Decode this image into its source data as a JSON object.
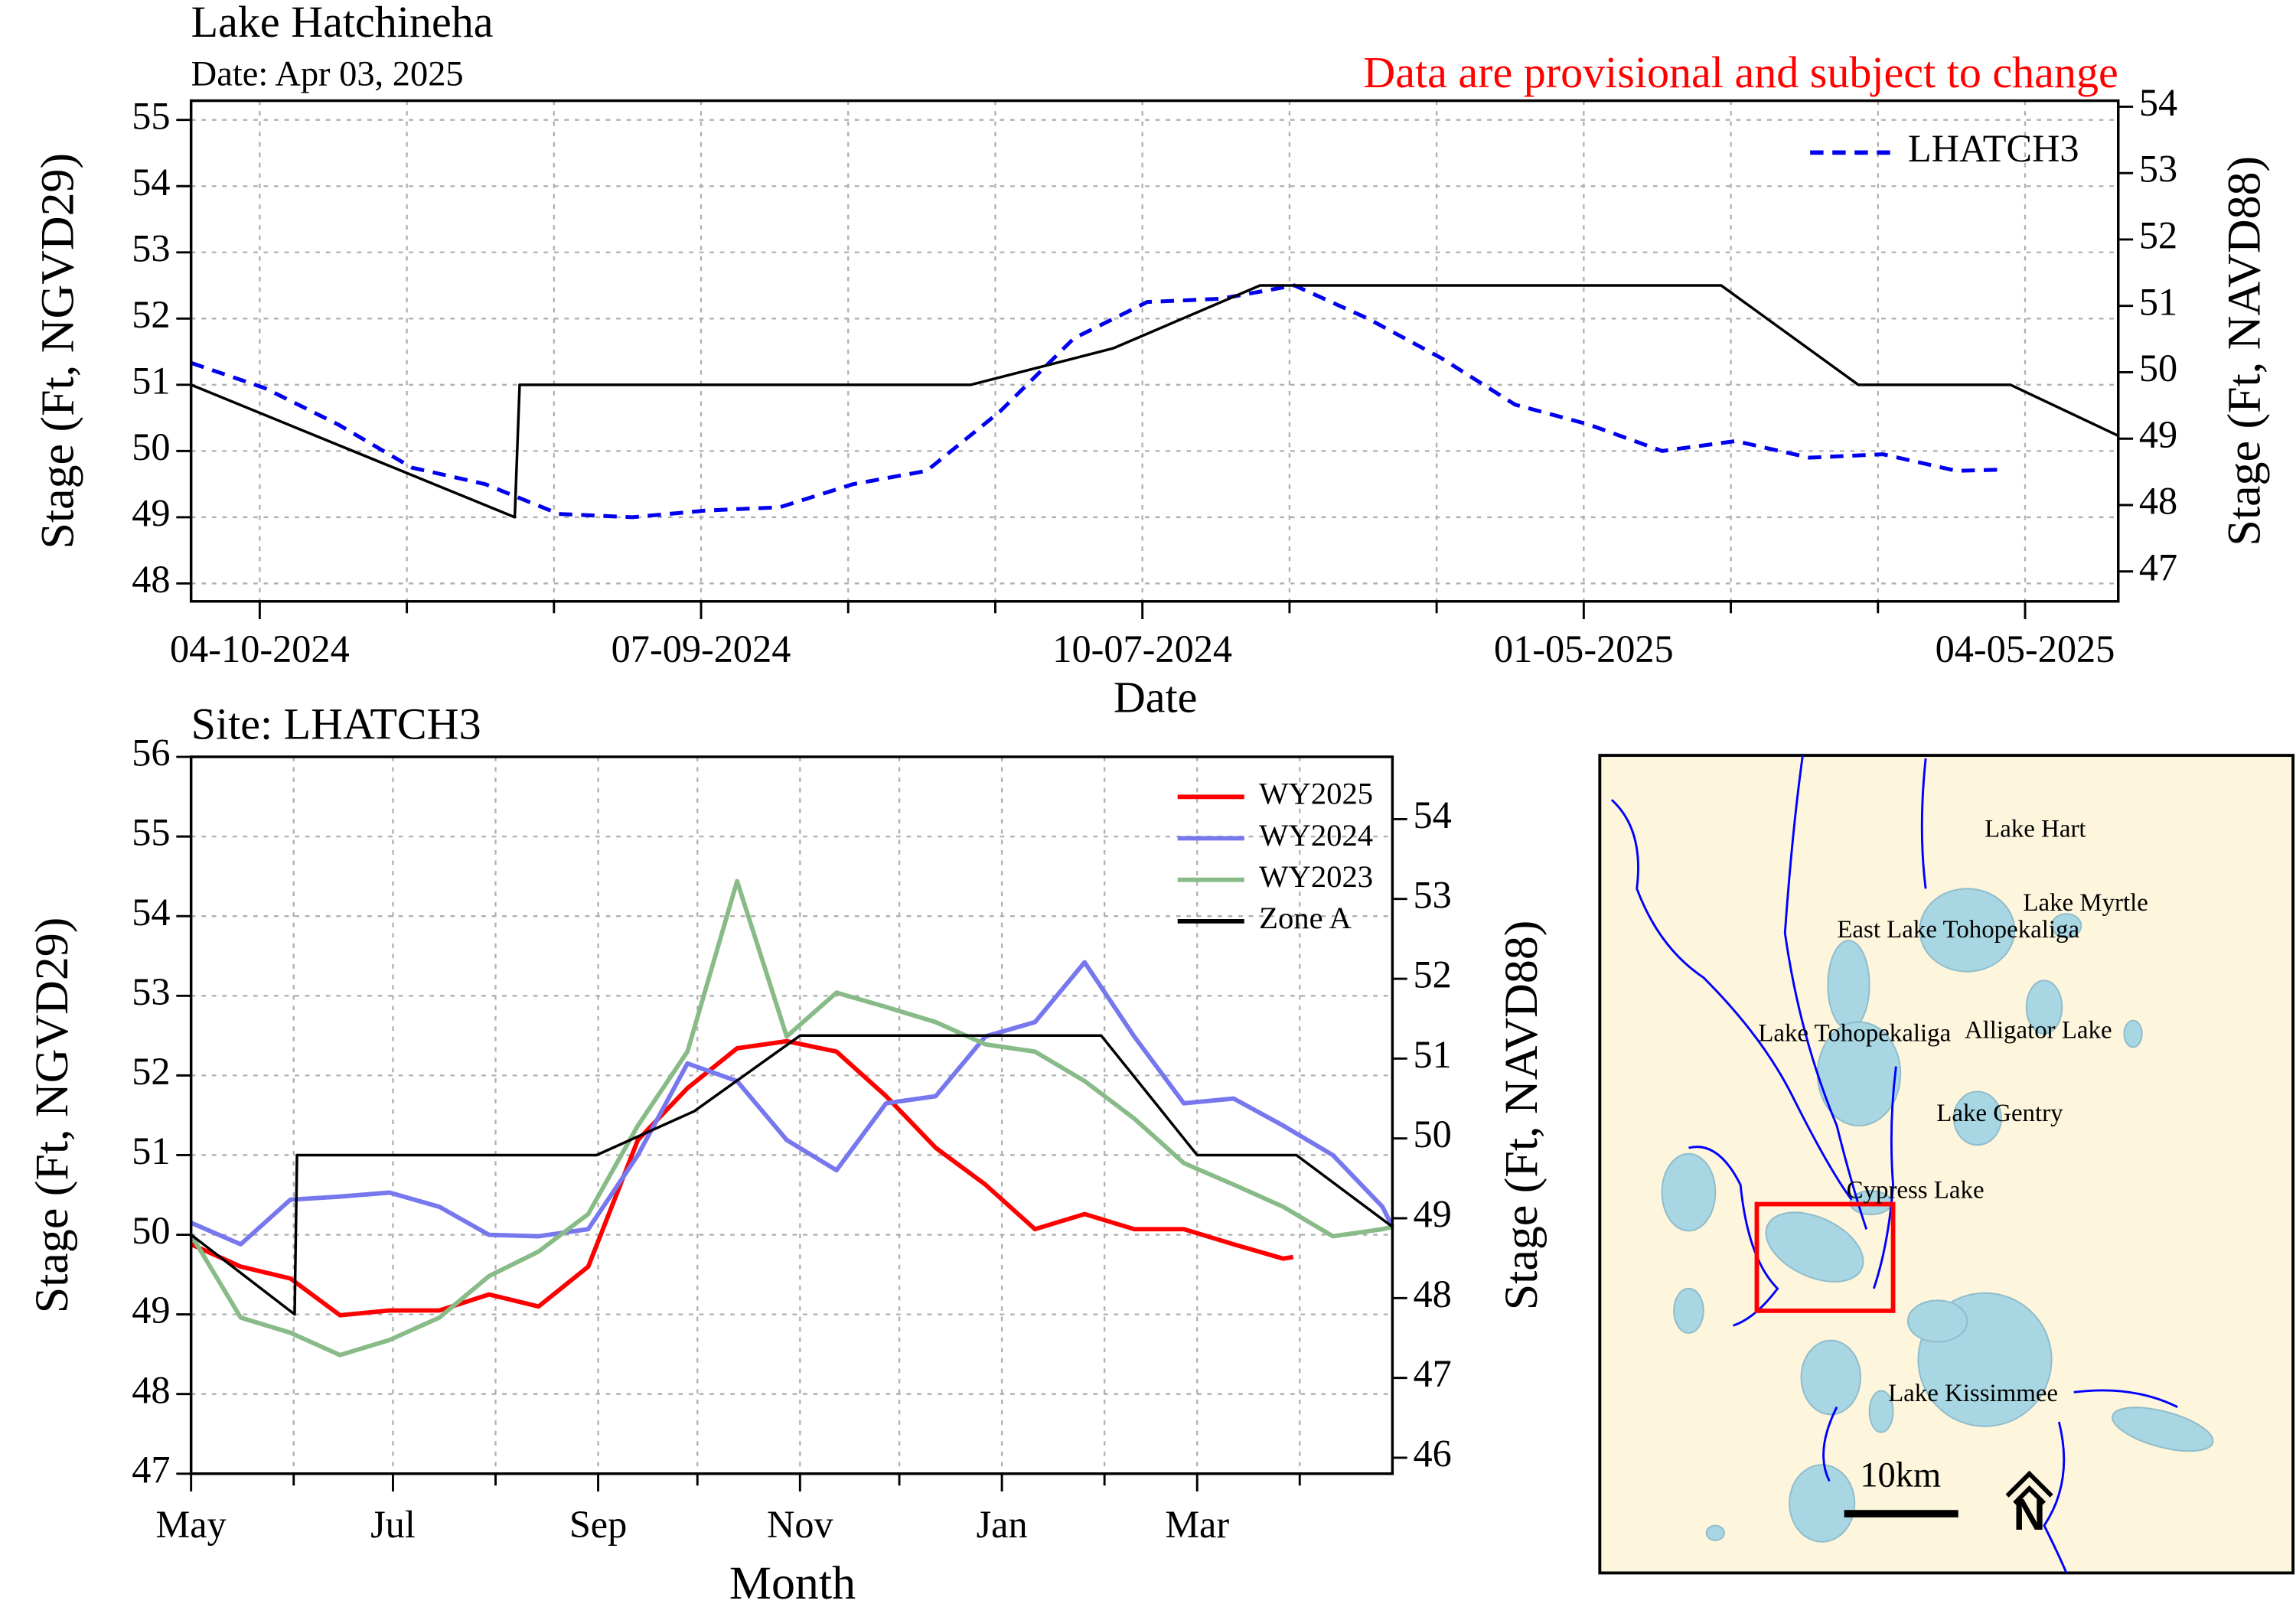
{
  "chart_data": [
    {
      "type": "line",
      "title": "Lake Hatchineha",
      "subtitle": "Date: Apr 03, 2025",
      "annotation": "Data are provisional and subject to change",
      "x_label": "Date",
      "y_label": "Stage (Ft, NGVD29)",
      "y2_label": "Stage (Ft, NAVD88)",
      "xlim": [
        "2024-03-27",
        "2025-04-24"
      ],
      "xticks": [
        {
          "value": "2024-04-10",
          "label": "04-10-2024"
        },
        {
          "value": "2024-05-10",
          "label": null
        },
        {
          "value": "2024-06-09",
          "label": null
        },
        {
          "value": "2024-07-09",
          "label": "07-09-2024"
        },
        {
          "value": "2024-08-08",
          "label": null
        },
        {
          "value": "2024-09-07",
          "label": null
        },
        {
          "value": "2024-10-07",
          "label": "10-07-2024"
        },
        {
          "value": "2024-11-06",
          "label": null
        },
        {
          "value": "2024-12-06",
          "label": null
        },
        {
          "value": "2025-01-05",
          "label": "01-05-2025"
        },
        {
          "value": "2025-02-04",
          "label": null
        },
        {
          "value": "2025-03-06",
          "label": null
        },
        {
          "value": "2025-04-05",
          "label": "04-05-2025"
        }
      ],
      "ylim": [
        47.73,
        55.29
      ],
      "yticks": [
        48,
        49,
        50,
        51,
        52,
        53,
        54,
        55
      ],
      "y2lim": [
        46.55,
        54.09
      ],
      "y2ticks": [
        47,
        48,
        49,
        50,
        51,
        52,
        53,
        54
      ],
      "grid": true,
      "legend": "upper right",
      "series": [
        {
          "name": "LHATCH3",
          "color": "#0000ee",
          "line_style": "dashed",
          "x": [
            "2024-03-27",
            "2024-04-11",
            "2024-04-26",
            "2024-05-11",
            "2024-05-26",
            "2024-06-10",
            "2024-06-25",
            "2024-07-10",
            "2024-07-25",
            "2024-08-09",
            "2024-08-24",
            "2024-09-08",
            "2024-09-23",
            "2024-10-08",
            "2024-10-23",
            "2024-11-07",
            "2024-11-22",
            "2024-12-07",
            "2024-12-22",
            "2025-01-06",
            "2025-01-21",
            "2025-02-05",
            "2025-02-20",
            "2025-03-07",
            "2025-03-22",
            "2025-04-01"
          ],
          "values": [
            51.33,
            50.95,
            50.4,
            49.75,
            49.5,
            49.05,
            49.0,
            49.1,
            49.15,
            49.5,
            49.7,
            50.6,
            51.7,
            52.25,
            52.3,
            52.5,
            52.0,
            51.4,
            50.7,
            50.4,
            50.0,
            50.15,
            49.9,
            49.95,
            49.7,
            49.72
          ]
        },
        {
          "color": "#000000",
          "line_style": "solid",
          "x": [
            "2024-03-27",
            "2024-06-01",
            "2024-06-02",
            "2024-09-02",
            "2024-10-01",
            "2024-10-31",
            "2025-02-02",
            "2025-03-02",
            "2025-04-02",
            "2025-04-24"
          ],
          "values": [
            51.0,
            49.0,
            51.0,
            51.0,
            51.55,
            52.5,
            52.5,
            51.0,
            51.0,
            50.23
          ]
        }
      ]
    },
    {
      "type": "line",
      "title": "Site: LHATCH3",
      "x_label": "Month",
      "y_label": "Stage (Ft, NGVD29)",
      "y2_label": "Stage (Ft, NAVD88)",
      "xlim": [
        0,
        363
      ],
      "xticks": [
        {
          "value": 0,
          "label": "May"
        },
        {
          "value": 31,
          "label": null
        },
        {
          "value": 61,
          "label": "Jul"
        },
        {
          "value": 92,
          "label": null
        },
        {
          "value": 123,
          "label": "Sep"
        },
        {
          "value": 153,
          "label": null
        },
        {
          "value": 184,
          "label": "Nov"
        },
        {
          "value": 214,
          "label": null
        },
        {
          "value": 245,
          "label": "Jan"
        },
        {
          "value": 276,
          "label": null
        },
        {
          "value": 304,
          "label": "Mar"
        },
        {
          "value": 335,
          "label": null
        }
      ],
      "ylim": [
        47,
        56
      ],
      "yticks": [
        47,
        48,
        49,
        50,
        51,
        52,
        53,
        54,
        55,
        56
      ],
      "y2lim": [
        45.8,
        54.78
      ],
      "y2ticks": [
        46,
        47,
        48,
        49,
        50,
        51,
        52,
        53,
        54
      ],
      "grid": true,
      "legend": "upper right",
      "series": [
        {
          "name": "WY2025",
          "color": "#ff0000",
          "line_style": "solid",
          "x": [
            0,
            15,
            30,
            45,
            60,
            75,
            90,
            105,
            120,
            135,
            150,
            165,
            180,
            195,
            210,
            225,
            240,
            255,
            270,
            285,
            300,
            315,
            330,
            333
          ],
          "values": [
            49.88,
            49.6,
            49.45,
            48.99,
            49.05,
            49.05,
            49.25,
            49.1,
            49.6,
            51.19,
            51.84,
            52.34,
            52.43,
            52.3,
            51.74,
            51.09,
            50.63,
            50.07,
            50.26,
            50.07,
            50.07,
            49.88,
            49.7,
            49.72
          ]
        },
        {
          "name": "WY2024",
          "color": "#7777ee",
          "line_style": "solid",
          "x": [
            0,
            15,
            30,
            45,
            60,
            75,
            90,
            105,
            120,
            135,
            150,
            165,
            180,
            195,
            210,
            225,
            240,
            255,
            270,
            285,
            300,
            315,
            330,
            345,
            360,
            363
          ],
          "values": [
            50.15,
            49.88,
            50.44,
            50.48,
            50.53,
            50.35,
            50.0,
            49.98,
            50.07,
            51.0,
            52.15,
            51.93,
            51.19,
            50.81,
            51.65,
            51.74,
            52.49,
            52.67,
            53.42,
            52.49,
            51.65,
            51.71,
            51.37,
            51.0,
            50.35,
            50.1
          ]
        },
        {
          "name": "WY2023",
          "color": "#88bb88",
          "line_style": "solid",
          "x": [
            0,
            15,
            30,
            45,
            60,
            75,
            90,
            105,
            120,
            135,
            150,
            165,
            180,
            195,
            210,
            225,
            240,
            255,
            270,
            285,
            300,
            315,
            330,
            345,
            360,
            363
          ],
          "values": [
            50.0,
            48.96,
            48.77,
            48.49,
            48.68,
            48.96,
            49.48,
            49.79,
            50.26,
            51.37,
            52.3,
            54.44,
            52.49,
            53.04,
            52.86,
            52.67,
            52.39,
            52.3,
            51.93,
            51.46,
            50.9,
            50.63,
            50.35,
            49.98,
            50.07,
            50.1
          ]
        },
        {
          "name": "Zone A",
          "color": "#000000",
          "line_style": "solid",
          "x": [
            0,
            31.3,
            32,
            122.5,
            152,
            184,
            275,
            304,
            334,
            363
          ],
          "values": [
            50.0,
            49.0,
            51.0,
            51.0,
            51.55,
            52.5,
            52.5,
            51.0,
            51.0,
            50.1
          ]
        }
      ]
    }
  ],
  "map": {
    "labels": [
      "Lake Hart",
      "Lake Myrtle",
      "East Lake Tohopekaliga",
      "Lake Tohopekaliga",
      "Alligator Lake",
      "Lake Gentry",
      "Cypress Lake",
      "Lake Kissimmee"
    ],
    "scale_label": "10km",
    "north_label": "N"
  }
}
